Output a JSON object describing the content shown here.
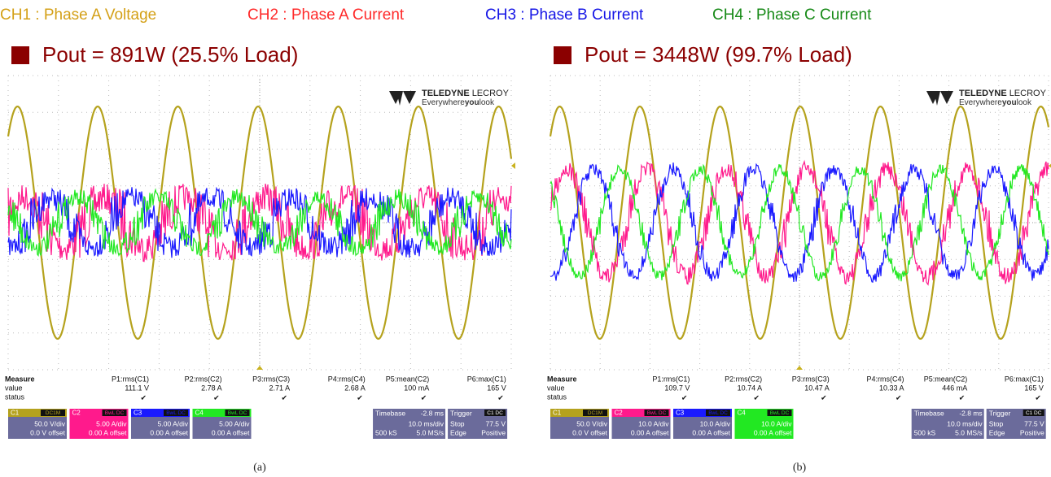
{
  "legend": [
    {
      "label": "CH1 : Phase A Voltage",
      "color": "#d4a017"
    },
    {
      "label": "CH2 : Phase A Current",
      "color": "#ff2a2a"
    },
    {
      "label": "CH3 : Phase B Current",
      "color": "#1515e6"
    },
    {
      "label": "CH4 : Phase C Current",
      "color": "#178a17"
    }
  ],
  "panels": [
    {
      "title": "Pout = 891W (25.5% Load)",
      "brand": "TELEDYNE",
      "brand2": "LECROY",
      "tagline": [
        "Everywhere",
        "you",
        "look"
      ],
      "measure": {
        "labels": [
          "Measure",
          "value",
          "status"
        ],
        "params": [
          {
            "name": "P1:rms(C1)",
            "value": "111.1 V",
            "status": "✔"
          },
          {
            "name": "P2:rms(C2)",
            "value": "2.78 A",
            "status": "✔"
          },
          {
            "name": "P3:rms(C3)",
            "value": "2.71 A",
            "status": "✔"
          },
          {
            "name": "P4:rms(C4)",
            "value": "2.68 A",
            "status": "✔"
          },
          {
            "name": "P5:mean(C2)",
            "value": "100 mA",
            "status": "✔"
          },
          {
            "name": "P6:max(C1)",
            "value": "165 V",
            "status": "✔"
          }
        ]
      },
      "channels": [
        {
          "name": "C1",
          "badge": "DC1M",
          "scale": "50.0 V/div",
          "offset": "0.0 V offset",
          "color": "#b5a21d",
          "body_color": "#6b6b9b"
        },
        {
          "name": "C2",
          "badge": "BwL DC",
          "scale": "5.00 A/div",
          "offset": "0.00 A offset",
          "color": "#ff1a8c",
          "body_color": "#ff1a8c"
        },
        {
          "name": "C3",
          "badge": "BwL DC",
          "scale": "5.00 A/div",
          "offset": "0.00 A offset",
          "color": "#1a1aff",
          "body_color": "#6b6b9b"
        },
        {
          "name": "C4",
          "badge": "BwL DC",
          "scale": "5.00 A/div",
          "offset": "0.00 A offset",
          "color": "#22e822",
          "body_color": "#6b6b9b"
        }
      ],
      "timebase": {
        "label": "Timebase",
        "delay": "-2.8 ms",
        "scale": "10.0 ms/div",
        "samples": "500 kS",
        "rate": "5.0 MS/s"
      },
      "trigger": {
        "label": "Trigger",
        "channel": "C1 DC",
        "mode": "Stop",
        "level": "77.5 V",
        "type": "Edge",
        "slope": "Positive"
      },
      "caption": "(a)"
    },
    {
      "title": "Pout = 3448W (99.7% Load)",
      "brand": "TELEDYNE",
      "brand2": "LECROY",
      "tagline": [
        "Everywhere",
        "you",
        "look"
      ],
      "measure": {
        "labels": [
          "Measure",
          "value",
          "status"
        ],
        "params": [
          {
            "name": "P1:rms(C1)",
            "value": "109.7 V",
            "status": "✔"
          },
          {
            "name": "P2:rms(C2)",
            "value": "10.74 A",
            "status": "✔"
          },
          {
            "name": "P3:rms(C3)",
            "value": "10.47 A",
            "status": "✔"
          },
          {
            "name": "P4:rms(C4)",
            "value": "10.33 A",
            "status": "✔"
          },
          {
            "name": "P5:mean(C2)",
            "value": "446 mA",
            "status": "✔"
          },
          {
            "name": "P6:max(C1)",
            "value": "165 V",
            "status": "✔"
          }
        ]
      },
      "channels": [
        {
          "name": "C1",
          "badge": "DC1M",
          "scale": "50.0 V/div",
          "offset": "0.0 V offset",
          "color": "#b5a21d",
          "body_color": "#6b6b9b"
        },
        {
          "name": "C2",
          "badge": "BwL DC",
          "scale": "10.0 A/div",
          "offset": "0.00 A offset",
          "color": "#ff1a8c",
          "body_color": "#6b6b9b"
        },
        {
          "name": "C3",
          "badge": "BwL DC",
          "scale": "10.0 A/div",
          "offset": "0.00 A offset",
          "color": "#1a1aff",
          "body_color": "#6b6b9b"
        },
        {
          "name": "C4",
          "badge": "BwL DC",
          "scale": "10.0 A/div",
          "offset": "0.00 A offset",
          "color": "#22e822",
          "body_color": "#22e822"
        }
      ],
      "timebase": {
        "label": "Timebase",
        "delay": "-2.8 ms",
        "scale": "10.0 ms/div",
        "samples": "500 kS",
        "rate": "5.0 MS/s"
      },
      "trigger": {
        "label": "Trigger",
        "channel": "C1 DC",
        "mode": "Stop",
        "level": "77.5 V",
        "type": "Edge",
        "slope": "Positive"
      },
      "caption": "(b)"
    }
  ]
}
